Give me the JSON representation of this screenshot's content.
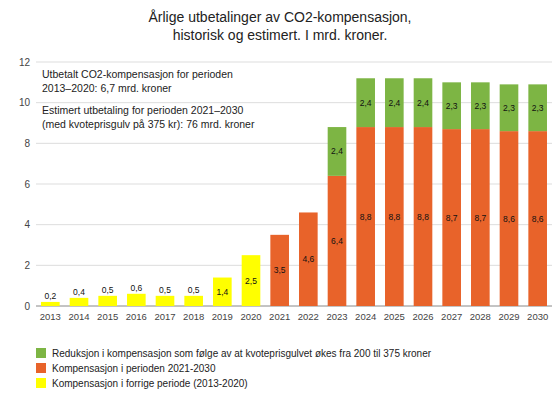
{
  "chart_data": {
    "type": "bar",
    "stacked": true,
    "title": "Årlige utbetalinger av CO2-kompensasjon,\nhistorisk og estimert. I mrd. kroner.",
    "categories": [
      "2013",
      "2014",
      "2015",
      "2016",
      "2017",
      "2018",
      "2019",
      "2020",
      "2021",
      "2022",
      "2023",
      "2024",
      "2025",
      "2026",
      "2027",
      "2028",
      "2029",
      "2030"
    ],
    "series": [
      {
        "name": "Kompensasjon i forrige periode (2013-2020)",
        "color": "#FFFF00",
        "values": [
          0.2,
          0.4,
          0.5,
          0.6,
          0.5,
          0.5,
          1.4,
          2.5,
          0,
          0,
          0,
          0,
          0,
          0,
          0,
          0,
          0,
          0
        ],
        "value_labels": [
          "0,2",
          "0,4",
          "0,5",
          "0,6",
          "0,5",
          "0,5",
          "1,4",
          "2,5",
          null,
          null,
          null,
          null,
          null,
          null,
          null,
          null,
          null,
          null
        ]
      },
      {
        "name": "Kompensasjon i perioden 2021-2030",
        "color": "#E8632A",
        "values": [
          0,
          0,
          0,
          0,
          0,
          0,
          0,
          0,
          3.5,
          4.6,
          6.4,
          8.8,
          8.8,
          8.8,
          8.7,
          8.7,
          8.6,
          8.6
        ],
        "value_labels": [
          null,
          null,
          null,
          null,
          null,
          null,
          null,
          null,
          "3,5",
          "4,6",
          "6,4",
          "8,8",
          "8,8",
          "8,8",
          "8,7",
          "8,7",
          "8,6",
          "8,6"
        ]
      },
      {
        "name": "Reduksjon i kompensasjon som følge av at kvoteprisgulvet økes fra 200 til 375 kroner",
        "color": "#7DB544",
        "values": [
          0,
          0,
          0,
          0,
          0,
          0,
          0,
          0,
          0,
          0,
          2.4,
          2.4,
          2.4,
          2.4,
          2.3,
          2.3,
          2.3,
          2.3
        ],
        "value_labels": [
          null,
          null,
          null,
          null,
          null,
          null,
          null,
          null,
          null,
          null,
          "2,4",
          "2,4",
          "2,4",
          "2,4",
          "2,3",
          "2,3",
          "2,3",
          "2,3"
        ]
      }
    ],
    "annotations": [
      "Utbetalt CO2-kompensasjon for perioden 2013–2020: 6,7 mrd. kroner",
      "Estimert utbetaling for perioden 2021–2030 (med kvoteprisgulv på 375 kr): 76 mrd. kroner"
    ],
    "ylim": [
      0,
      12
    ],
    "yticks": [
      0,
      2,
      4,
      6,
      8,
      10,
      12
    ],
    "grid": true,
    "legend": "lower left",
    "data_labels": true
  }
}
